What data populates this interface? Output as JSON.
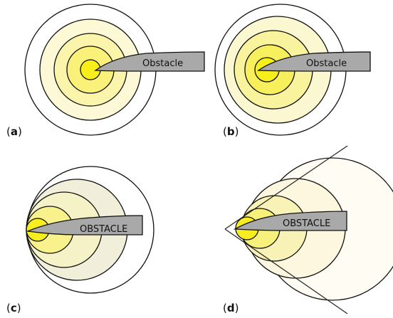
{
  "panels": [
    {
      "id": "a",
      "letter": "a",
      "obstacle_label": "Obstacle"
    },
    {
      "id": "b",
      "letter": "b",
      "obstacle_label": "Obstacle"
    },
    {
      "id": "c",
      "letter": "c",
      "obstacle_label": "OBSTACLE"
    },
    {
      "id": "d",
      "letter": "d",
      "obstacle_label": "OBSTACLE"
    }
  ],
  "colors": {
    "ring_fills_inner_to_outer": [
      "#f6ef1c",
      "#f9f17a",
      "#fbf4ab",
      "#fdf9d6",
      "#ffffff"
    ],
    "panel_c_fills_inner_to_outer": [
      "#f7ee1e",
      "#f8f18c",
      "#f5f2c8",
      "#f1efd9",
      "#ffffff"
    ],
    "panel_d_fills_inner_to_outer": [
      "#f6ec20",
      "#f7f07a",
      "#f9f2b7",
      "#fcf7de",
      "#fffdf3"
    ],
    "obstacle_fill": "#a9a9a9",
    "outline": "#111111"
  }
}
